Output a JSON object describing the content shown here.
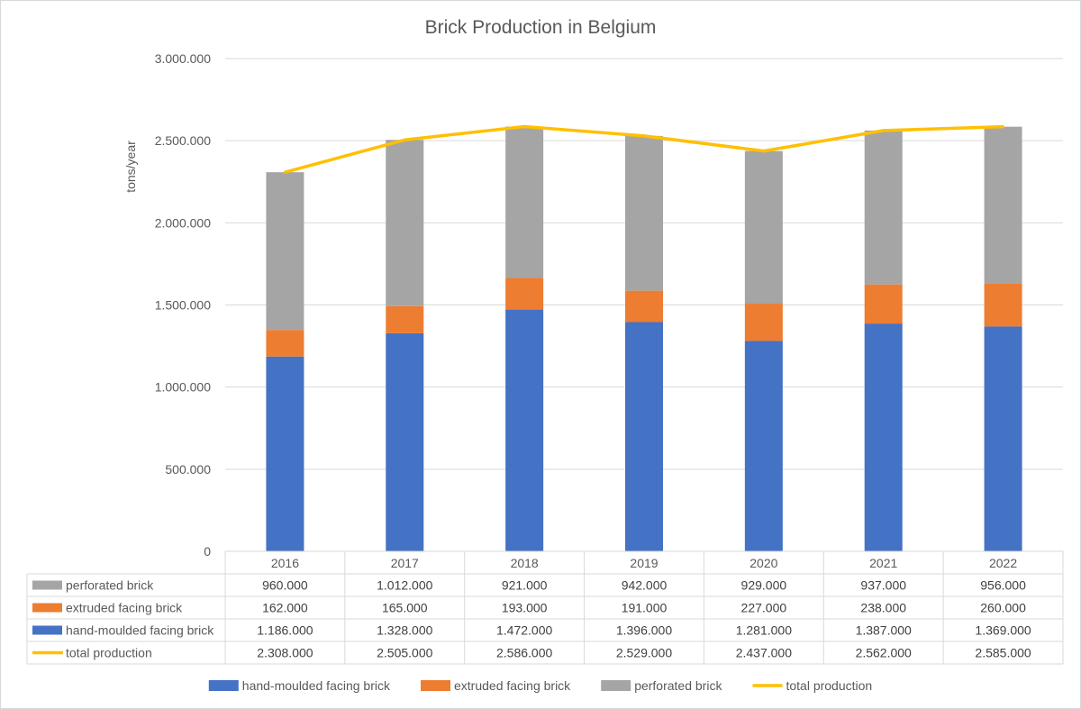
{
  "chart_data": {
    "type": "bar",
    "stacked": true,
    "title": "Brick Production in Belgium",
    "ylabel": "tons/year",
    "xlabel": "",
    "ylim": [
      0,
      3000000
    ],
    "yticks": [
      0,
      500000,
      1000000,
      1500000,
      2000000,
      2500000,
      3000000
    ],
    "ytick_labels": [
      "0",
      "500.000",
      "1.000.000",
      "1.500.000",
      "2.000.000",
      "2.500.000",
      "3.000.000"
    ],
    "grid": true,
    "legend_position": "bottom",
    "categories": [
      "2016",
      "2017",
      "2018",
      "2019",
      "2020",
      "2021",
      "2022"
    ],
    "series": [
      {
        "name": "hand-moulded facing brick",
        "kind": "bar",
        "color": "#4472C4",
        "values": [
          1186000,
          1328000,
          1472000,
          1396000,
          1281000,
          1387000,
          1369000
        ],
        "labels": [
          "1.186.000",
          "1.328.000",
          "1.472.000",
          "1.396.000",
          "1.281.000",
          "1.387.000",
          "1.369.000"
        ]
      },
      {
        "name": "extruded facing brick",
        "kind": "bar",
        "color": "#ED7D31",
        "values": [
          162000,
          165000,
          193000,
          191000,
          227000,
          238000,
          260000
        ],
        "labels": [
          "162.000",
          "165.000",
          "193.000",
          "191.000",
          "227.000",
          "238.000",
          "260.000"
        ]
      },
      {
        "name": "perforated brick",
        "kind": "bar",
        "color": "#A5A5A5",
        "values": [
          960000,
          1012000,
          921000,
          942000,
          929000,
          937000,
          956000
        ],
        "labels": [
          "960.000",
          "1.012.000",
          "921.000",
          "942.000",
          "929.000",
          "937.000",
          "956.000"
        ]
      },
      {
        "name": "total production",
        "kind": "line",
        "color": "#FFC000",
        "values": [
          2308000,
          2505000,
          2586000,
          2529000,
          2437000,
          2562000,
          2585000
        ],
        "labels": [
          "2.308.000",
          "2.505.000",
          "2.586.000",
          "2.529.000",
          "2.437.000",
          "2.562.000",
          "2.585.000"
        ]
      }
    ],
    "data_table": {
      "row_order": [
        "perforated brick",
        "extruded facing brick",
        "hand-moulded facing brick",
        "total production"
      ]
    },
    "legend_order": [
      "hand-moulded facing brick",
      "extruded facing brick",
      "perforated brick",
      "total production"
    ]
  }
}
